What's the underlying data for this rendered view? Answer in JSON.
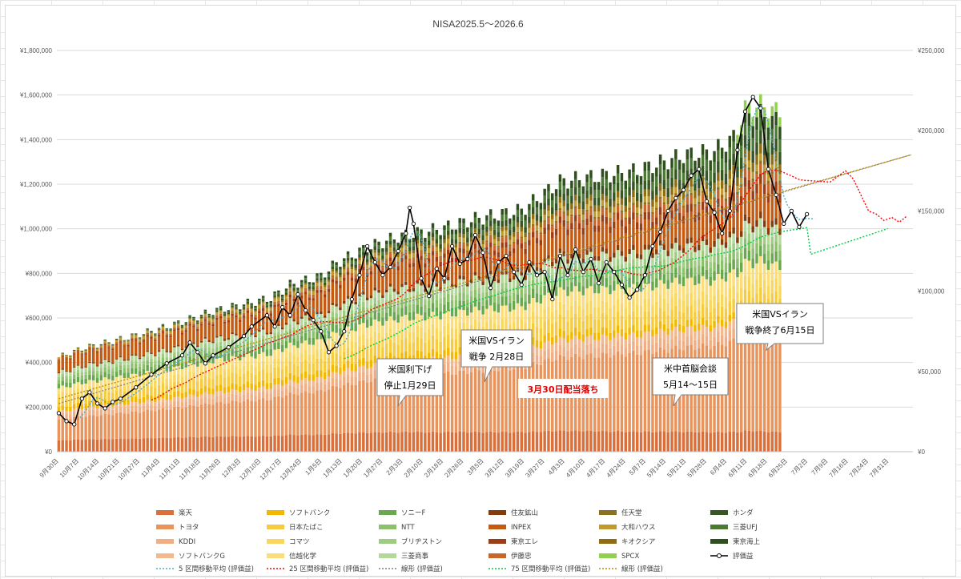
{
  "chart_data": {
    "type": "bar",
    "subtype": "stacked-bar-with-lines-dual-axis",
    "title": "NISA2025.5～2026.6",
    "left_axis": {
      "ticks": [
        "¥0",
        "¥200,000",
        "¥400,000",
        "¥600,000",
        "¥800,000",
        "¥1,000,000",
        "¥1,200,000",
        "¥1,400,000",
        "¥1,600,000",
        "¥1,800,000"
      ],
      "range": [
        0,
        1800000
      ]
    },
    "right_axis": {
      "ticks": [
        "¥0",
        "¥50,000",
        "¥100,000",
        "¥150,000",
        "¥200,000",
        "¥250,000"
      ],
      "range": [
        0,
        250000
      ]
    },
    "x_ticks": [
      "9月30日",
      "10月7日",
      "10月14日",
      "10月21日",
      "10月27日",
      "11月4日",
      "11月11日",
      "11月18日",
      "11月26日",
      "12月3日",
      "12月10日",
      "12月17日",
      "12月24日",
      "1月5日",
      "1月13日",
      "1月20日",
      "1月27日",
      "2月3日",
      "2月10日",
      "2月18日",
      "2月26日",
      "3月5日",
      "3月12日",
      "3月19日",
      "3月27日",
      "4月3日",
      "4月10日",
      "4月17日",
      "4月24日",
      "5月7日",
      "5月14日",
      "5月21日",
      "5月28日",
      "6月4日",
      "6月11日",
      "6月18日",
      "6月25日",
      "7月2日",
      "7月9日",
      "7月16日",
      "7月24日",
      "7月31日"
    ],
    "grid": true,
    "legend_position": "bottom",
    "stack_series": [
      {
        "name": "楽天",
        "color": "#d9703b"
      },
      {
        "name": "トヨタ",
        "color": "#e8945c"
      },
      {
        "name": "KDDI",
        "color": "#efae84"
      },
      {
        "name": "ソフトバンクG",
        "color": "#f2b98f"
      },
      {
        "name": "ソフトバンク",
        "color": "#f5b800"
      },
      {
        "name": "日本たばこ",
        "color": "#f7cb3f"
      },
      {
        "name": "コマツ",
        "color": "#f9d65e"
      },
      {
        "name": "信越化学",
        "color": "#fbdd7c"
      },
      {
        "name": "ソニーF",
        "color": "#6aa84f"
      },
      {
        "name": "NTT",
        "color": "#8cc06b"
      },
      {
        "name": "ブリヂストン",
        "color": "#9fcb82"
      },
      {
        "name": "三菱商事",
        "color": "#b4d79c"
      },
      {
        "name": "住友鉱山",
        "color": "#843c0c"
      },
      {
        "name": "INPEX",
        "color": "#c55a11"
      },
      {
        "name": "東京エレ",
        "color": "#9b3d17"
      },
      {
        "name": "伊藤忠",
        "color": "#c9652a"
      },
      {
        "name": "任天堂",
        "color": "#8b7020"
      },
      {
        "name": "大和ハウス",
        "color": "#c09a2c"
      },
      {
        "name": "キオクシア",
        "color": "#8f6d10"
      },
      {
        "name": "ホンダ",
        "color": "#375623"
      },
      {
        "name": "三菱UFJ",
        "color": "#4c7a34"
      },
      {
        "name": "東京海上",
        "color": "#2f4f1f"
      },
      {
        "name": "SPCX",
        "color": "#92d050"
      }
    ],
    "line_series": [
      {
        "name": "評価益",
        "color": "#000000"
      },
      {
        "name": "5 区間移動平均 (評価益)",
        "color": "#4bacc6"
      },
      {
        "name": "25 区間移動平均 (評価益)",
        "color": "#ff0000"
      },
      {
        "name": "線形 (評価益)",
        "color": "#7f7f7f"
      },
      {
        "name": "75 区間移動平均 (評価益)",
        "color": "#00cc44"
      },
      {
        "name": "線形 (評価益)",
        "color": "#bf9000"
      }
    ],
    "totals_shape": [
      [
        0,
        430000
      ],
      [
        6,
        470000
      ],
      [
        20,
        530000
      ],
      [
        30,
        580000
      ],
      [
        40,
        640000
      ],
      [
        55,
        700000
      ],
      [
        60,
        760000
      ],
      [
        68,
        800000
      ],
      [
        72,
        860000
      ],
      [
        80,
        930000
      ],
      [
        88,
        980000
      ],
      [
        100,
        1020000
      ],
      [
        108,
        1060000
      ],
      [
        120,
        1100000
      ],
      [
        130,
        1230000
      ],
      [
        150,
        1280000
      ],
      [
        162,
        1350000
      ],
      [
        170,
        1370000
      ],
      [
        175,
        1430000
      ],
      [
        178,
        1560000
      ],
      [
        182,
        1580000
      ],
      [
        186,
        1550000
      ]
    ],
    "eval_profit_points": [
      [
        0,
        24000
      ],
      [
        2,
        19000
      ],
      [
        4,
        17000
      ],
      [
        6,
        33000
      ],
      [
        8,
        37000
      ],
      [
        10,
        30000
      ],
      [
        12,
        27000
      ],
      [
        14,
        31000
      ],
      [
        16,
        33000
      ],
      [
        20,
        40000
      ],
      [
        24,
        48000
      ],
      [
        28,
        55000
      ],
      [
        32,
        60000
      ],
      [
        34,
        68000
      ],
      [
        36,
        62000
      ],
      [
        38,
        55000
      ],
      [
        40,
        60000
      ],
      [
        44,
        65000
      ],
      [
        48,
        72000
      ],
      [
        50,
        78000
      ],
      [
        54,
        85000
      ],
      [
        56,
        78000
      ],
      [
        58,
        90000
      ],
      [
        60,
        85000
      ],
      [
        62,
        98000
      ],
      [
        64,
        88000
      ],
      [
        66,
        82000
      ],
      [
        68,
        75000
      ],
      [
        70,
        62000
      ],
      [
        72,
        66000
      ],
      [
        74,
        75000
      ],
      [
        76,
        95000
      ],
      [
        78,
        110000
      ],
      [
        80,
        128000
      ],
      [
        82,
        118000
      ],
      [
        84,
        110000
      ],
      [
        86,
        115000
      ],
      [
        88,
        125000
      ],
      [
        90,
        136000
      ],
      [
        91,
        152000
      ],
      [
        92,
        142000
      ],
      [
        94,
        108000
      ],
      [
        96,
        97000
      ],
      [
        98,
        114000
      ],
      [
        100,
        108000
      ],
      [
        102,
        128000
      ],
      [
        104,
        117000
      ],
      [
        106,
        120000
      ],
      [
        108,
        135000
      ],
      [
        110,
        124000
      ],
      [
        112,
        102000
      ],
      [
        114,
        118000
      ],
      [
        116,
        122000
      ],
      [
        118,
        112000
      ],
      [
        120,
        104000
      ],
      [
        122,
        118000
      ],
      [
        124,
        110000
      ],
      [
        126,
        112000
      ],
      [
        128,
        95000
      ],
      [
        130,
        122000
      ],
      [
        132,
        110000
      ],
      [
        134,
        126000
      ],
      [
        136,
        112000
      ],
      [
        138,
        120000
      ],
      [
        140,
        105000
      ],
      [
        142,
        118000
      ],
      [
        144,
        112000
      ],
      [
        146,
        104000
      ],
      [
        148,
        96000
      ],
      [
        150,
        101000
      ],
      [
        152,
        110000
      ],
      [
        154,
        128000
      ],
      [
        156,
        137000
      ],
      [
        158,
        150000
      ],
      [
        160,
        158000
      ],
      [
        162,
        163000
      ],
      [
        164,
        172000
      ],
      [
        166,
        176000
      ],
      [
        168,
        156000
      ],
      [
        170,
        149000
      ],
      [
        172,
        136000
      ],
      [
        174,
        150000
      ],
      [
        176,
        188000
      ],
      [
        178,
        212000
      ],
      [
        180,
        221000
      ],
      [
        182,
        214000
      ],
      [
        184,
        176000
      ],
      [
        186,
        160000
      ],
      [
        188,
        142000
      ],
      [
        190,
        150000
      ],
      [
        192,
        140000
      ],
      [
        194,
        148000
      ]
    ],
    "annotations": [
      {
        "lines": [
          "米国利下げ",
          "停止1月29日"
        ],
        "highlight": false
      },
      {
        "lines": [
          "米国VSイラン",
          "戦争 2月28日"
        ],
        "highlight": false
      },
      {
        "lines": [
          "3月30日配当落ち"
        ],
        "highlight": true
      },
      {
        "lines": [
          "米中首脳会談",
          "5月14～15日"
        ],
        "highlight": false
      },
      {
        "lines": [
          "米国VSイラン",
          "戦争終了6月15日"
        ],
        "highlight": false
      }
    ]
  }
}
